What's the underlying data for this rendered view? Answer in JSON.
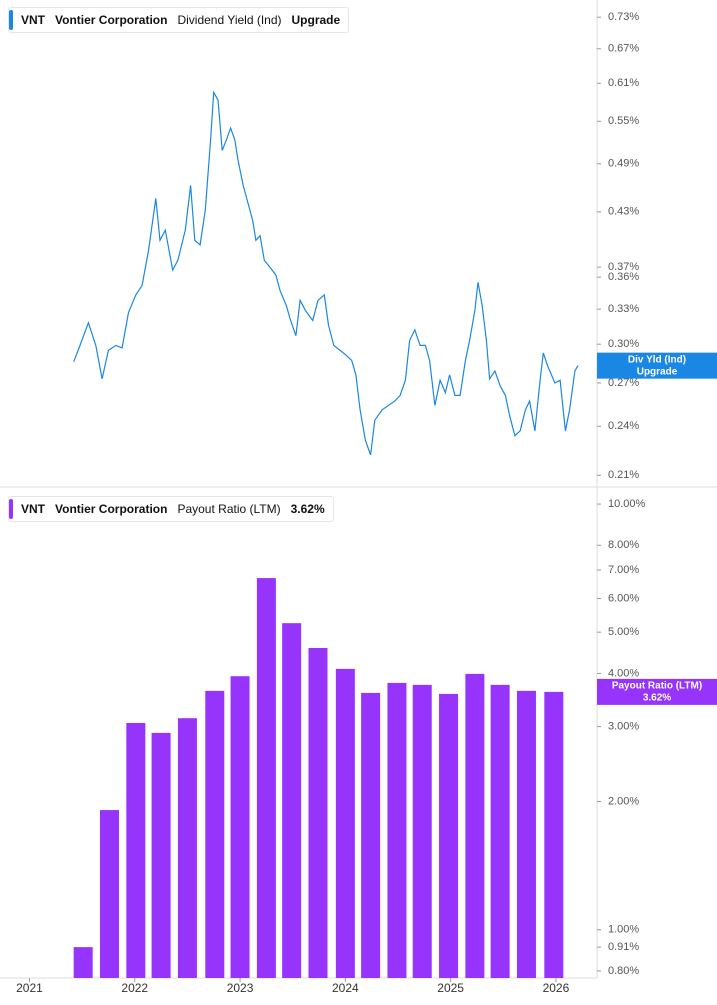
{
  "chart_data": [
    {
      "type": "line",
      "ticker": "VNT",
      "company": "Vontier Corporation",
      "badge": "Upgrade",
      "tag": [
        "Div Yld (Ind)",
        "Upgrade"
      ],
      "series": [
        {
          "name": "Dividend Yield (Ind)",
          "color": "#1a87e5",
          "x": [
            2021.42,
            2021.48,
            2021.56,
            2021.63,
            2021.69,
            2021.75,
            2021.82,
            2021.88,
            2021.94,
            2022.01,
            2022.07,
            2022.13,
            2022.2,
            2022.24,
            2022.29,
            2022.36,
            2022.41,
            2022.48,
            2022.53,
            2022.57,
            2022.62,
            2022.67,
            2022.72,
            2022.75,
            2022.79,
            2022.83,
            2022.87,
            2022.91,
            2022.95,
            2022.98,
            2023.03,
            2023.08,
            2023.12,
            2023.15,
            2023.19,
            2023.23,
            2023.29,
            2023.34,
            2023.38,
            2023.44,
            2023.48,
            2023.53,
            2023.57,
            2023.62,
            2023.69,
            2023.74,
            2023.8,
            2023.84,
            2023.89,
            2023.95,
            2024.01,
            2024.06,
            2024.1,
            2024.14,
            2024.19,
            2024.24,
            2024.28,
            2024.35,
            2024.41,
            2024.47,
            2024.52,
            2024.57,
            2024.61,
            2024.66,
            2024.71,
            2024.76,
            2024.8,
            2024.85,
            2024.9,
            2024.95,
            2024.99,
            2025.04,
            2025.09,
            2025.14,
            2025.18,
            2025.23,
            2025.26,
            2025.3,
            2025.34,
            2025.37,
            2025.42,
            2025.47,
            2025.52,
            2025.56,
            2025.61,
            2025.66,
            2025.71,
            2025.75,
            2025.8,
            2025.85,
            2025.88,
            2025.92,
            2025.99,
            2026.04,
            2026.09,
            2026.13,
            2026.18,
            2026.21
          ],
          "values": [
            0.286,
            0.299,
            0.318,
            0.299,
            0.273,
            0.295,
            0.299,
            0.297,
            0.327,
            0.343,
            0.352,
            0.387,
            0.446,
            0.398,
            0.409,
            0.367,
            0.377,
            0.409,
            0.462,
            0.398,
            0.393,
            0.432,
            0.523,
            0.595,
            0.583,
            0.508,
            0.523,
            0.54,
            0.523,
            0.495,
            0.462,
            0.438,
            0.42,
            0.398,
            0.403,
            0.377,
            0.369,
            0.362,
            0.347,
            0.333,
            0.32,
            0.307,
            0.338,
            0.329,
            0.32,
            0.338,
            0.343,
            0.316,
            0.299,
            0.295,
            0.291,
            0.287,
            0.276,
            0.251,
            0.231,
            0.222,
            0.244,
            0.251,
            0.254,
            0.257,
            0.261,
            0.272,
            0.303,
            0.312,
            0.299,
            0.299,
            0.287,
            0.254,
            0.272,
            0.263,
            0.276,
            0.261,
            0.261,
            0.287,
            0.303,
            0.329,
            0.355,
            0.333,
            0.303,
            0.273,
            0.279,
            0.268,
            0.261,
            0.247,
            0.234,
            0.237,
            0.251,
            0.257,
            0.237,
            0.272,
            0.293,
            0.283,
            0.27,
            0.272,
            0.237,
            0.251,
            0.279,
            0.283
          ]
        }
      ],
      "xlim": [
        2020.72,
        2026.39
      ],
      "ylim": [
        0.204,
        0.765
      ],
      "log_scale": true,
      "yticks": [
        {
          "value": 0.73,
          "label": "0.73%"
        },
        {
          "value": 0.67,
          "label": "0.67%"
        },
        {
          "value": 0.61,
          "label": "0.61%"
        },
        {
          "value": 0.55,
          "label": "0.55%"
        },
        {
          "value": 0.49,
          "label": "0.49%"
        },
        {
          "value": 0.43,
          "label": "0.43%"
        },
        {
          "value": 0.37,
          "label": "0.37%"
        },
        {
          "value": 0.36,
          "label": "0.36%"
        },
        {
          "value": 0.33,
          "label": "0.33%"
        },
        {
          "value": 0.3,
          "label": "0.30%"
        },
        {
          "value": 0.27,
          "label": "0.27%"
        },
        {
          "value": 0.24,
          "label": "0.24%"
        },
        {
          "value": 0.21,
          "label": "0.21%"
        }
      ]
    },
    {
      "type": "bar",
      "ticker": "VNT",
      "company": "Vontier Corporation",
      "badge": "3.62%",
      "tag": [
        "Payout Ratio (LTM)",
        "3.62%"
      ],
      "series": [
        {
          "name": "Payout Ratio (LTM)",
          "color": "#9634fb",
          "x": [
            2021.51,
            2021.76,
            2022.01,
            2022.25,
            2022.5,
            2022.76,
            2023.0,
            2023.25,
            2023.49,
            2023.74,
            2024.0,
            2024.24,
            2024.49,
            2024.73,
            2024.98,
            2025.23,
            2025.47,
            2025.72,
            2025.98
          ],
          "values": [
            0.91,
            1.91,
            3.06,
            2.9,
            3.14,
            3.64,
            3.94,
            6.7,
            5.25,
            4.59,
            4.1,
            3.6,
            3.8,
            3.76,
            3.58,
            3.99,
            3.76,
            3.64,
            3.62
          ]
        }
      ],
      "xlim": [
        2020.72,
        2026.39
      ],
      "ylim": [
        0.77,
        10.79
      ],
      "log_scale": true,
      "xticks": [
        2021,
        2022,
        2023,
        2024,
        2025,
        2026
      ],
      "yticks": [
        {
          "value": 10,
          "label": "10.00%"
        },
        {
          "value": 8,
          "label": "8.00%"
        },
        {
          "value": 7,
          "label": "7.00%"
        },
        {
          "value": 6,
          "label": "6.00%"
        },
        {
          "value": 5,
          "label": "5.00%"
        },
        {
          "value": 4,
          "label": "4.00%"
        },
        {
          "value": 3,
          "label": "3.00%"
        },
        {
          "value": 2,
          "label": "2.00%"
        },
        {
          "value": 1,
          "label": "1.00%"
        },
        {
          "value": 0.91,
          "label": "0.91%"
        },
        {
          "value": 0.8,
          "label": "0.80%"
        }
      ]
    }
  ]
}
